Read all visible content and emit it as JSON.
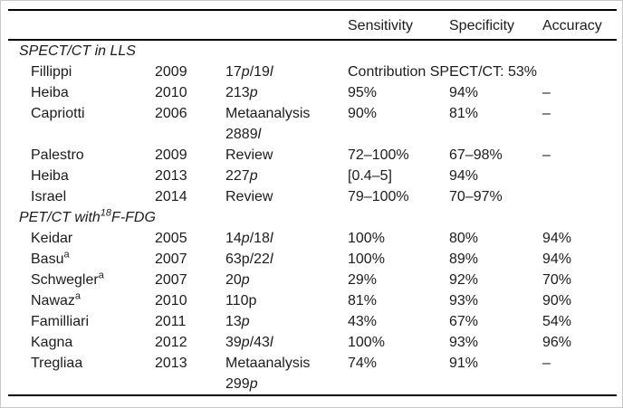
{
  "colors": {
    "text": "#1c1c1c",
    "rule": "#000000",
    "page_border": "#c9c9c9",
    "background": "#ffffff"
  },
  "table": {
    "headers": [
      "Sensitivity",
      "Specificity",
      "Accuracy"
    ],
    "sections": [
      {
        "title": "SPECT/CT in LLS",
        "rows": [
          {
            "author": "Fillippi",
            "year": "2009",
            "study": "17*p*/19*l*",
            "sensitivity": "Contribution SPECT/CT: 53%",
            "specificity": "",
            "accuracy": "",
            "sensitivity_spans_two_columns": true
          },
          {
            "author": "Heiba",
            "year": "2010",
            "study": "213*p*",
            "sensitivity": "95%",
            "specificity": "94%",
            "accuracy": "–"
          },
          {
            "author": "Capriotti",
            "year": "2006",
            "study": "Metaanalysis\n2889*l*",
            "sensitivity": "90%",
            "specificity": "81%",
            "accuracy": "–"
          },
          {
            "author": "Palestro",
            "year": "2009",
            "study": "Review",
            "sensitivity": "72–100%",
            "specificity": "67–98%",
            "accuracy": "–"
          },
          {
            "author": "Heiba",
            "year": "2013",
            "study": "227*p*",
            "sensitivity": "[0.4–5]",
            "specificity": "94%",
            "accuracy": ""
          },
          {
            "author": "Israel",
            "year": "2014",
            "study": "Review",
            "sensitivity": "79–100%",
            "specificity": "70–97%",
            "accuracy": ""
          }
        ]
      },
      {
        "title": "PET/CT with^18^F-FDG",
        "rows": [
          {
            "author": "Keidar",
            "year": "2005",
            "study": "14*p*/18*l*",
            "sensitivity": "100%",
            "specificity": "80%",
            "accuracy": "94%"
          },
          {
            "author": "Basu^a^",
            "year": "2007",
            "study": "63p/22*l*",
            "sensitivity": "100%",
            "specificity": "89%",
            "accuracy": "94%"
          },
          {
            "author": "Schwegler^a^",
            "year": "2007",
            "study": "20*p*",
            "sensitivity": "29%",
            "specificity": "92%",
            "accuracy": "70%"
          },
          {
            "author": "Nawaz^a^",
            "year": "2010",
            "study": "110p",
            "sensitivity": "81%",
            "specificity": "93%",
            "accuracy": "90%"
          },
          {
            "author": "Familliari",
            "year": "2011",
            "study": "13*p*",
            "sensitivity": "43%",
            "specificity": "67%",
            "accuracy": "54%"
          },
          {
            "author": "Kagna",
            "year": "2012",
            "study": "39*p*/43*l*",
            "sensitivity": "100%",
            "specificity": "93%",
            "accuracy": "96%"
          },
          {
            "author": "Tregliaa",
            "year": "2013",
            "study": "Metaanalysis\n299*p*",
            "sensitivity": "74%",
            "specificity": "91%",
            "accuracy": "–"
          }
        ]
      }
    ]
  }
}
